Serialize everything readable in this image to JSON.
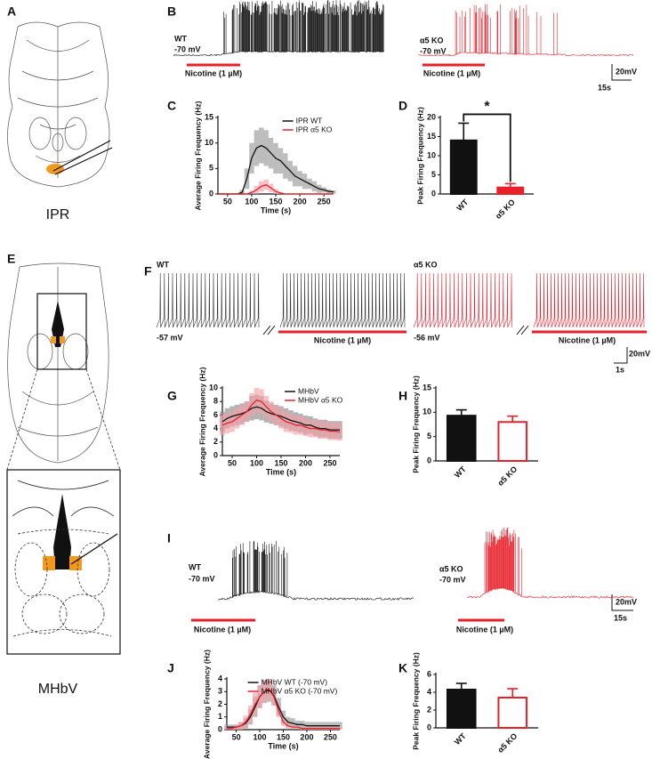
{
  "panel_labels": [
    "A",
    "B",
    "C",
    "D",
    "E",
    "F",
    "G",
    "H",
    "I",
    "J",
    "K"
  ],
  "region_labels": [
    "IPR",
    "MHbV"
  ],
  "traces": [
    {
      "genotype": "WT",
      "potential": "-70 mV",
      "drug": "Nicotine (1 µM)"
    },
    {
      "genotype": "α5 KO",
      "potential": "-70 mV",
      "drug": "Nicotine (1 µM)"
    },
    {
      "genotype": "WT",
      "potential": "-57 mV",
      "drug": "Nicotine (1 µM)"
    },
    {
      "genotype": "α5 KO",
      "potential": "-56 mV",
      "drug": "Nicotine (1 µM)"
    },
    {
      "genotype": "WT",
      "potential": "-70 mV",
      "drug": "Nicotine (1 µM)"
    },
    {
      "genotype": "α5 KO",
      "potential": "-70 mV",
      "drug": "Nicotine (1 µM)"
    }
  ],
  "scale_bars": [
    {
      "voltage": "20mV",
      "time": "15s"
    },
    {
      "voltage": "20mV",
      "time": "1s"
    },
    {
      "voltage": "20mV",
      "time": "15s"
    }
  ],
  "chart_data": [
    {
      "type": "line",
      "xlabel": "Time (s)",
      "ylabel": "Average Firing Frequency (Hz)",
      "legend": "upper right",
      "x": [
        30,
        40,
        50,
        60,
        70,
        80,
        90,
        100,
        110,
        120,
        130,
        140,
        150,
        160,
        170,
        180,
        190,
        200,
        210,
        220,
        230,
        240,
        250,
        260,
        270
      ],
      "xlim": [
        30,
        270
      ],
      "xticks": [
        50,
        100,
        150,
        200,
        250
      ],
      "ylim": [
        0,
        15
      ],
      "yticks": [
        0,
        5,
        10,
        15
      ],
      "series": [
        {
          "name": "IPR WT",
          "color": "#111111",
          "band_color": "#9a9a9a",
          "values": [
            0,
            0,
            0,
            0,
            0,
            0.3,
            3,
            7,
            9,
            9.5,
            9,
            8,
            7,
            6.5,
            5.5,
            4.5,
            3.5,
            3,
            2.5,
            2,
            1.5,
            1,
            0.8,
            0.5,
            0.4
          ],
          "errors": [
            0,
            0,
            0,
            0,
            0,
            0.5,
            2,
            3,
            3.5,
            3.5,
            3.5,
            3,
            3,
            2.5,
            2.5,
            2,
            2,
            1.5,
            1.5,
            1,
            1,
            0.8,
            0.5,
            0.4,
            0.3
          ]
        },
        {
          "name": "IPR α5 KO",
          "color": "#e8202a",
          "band_color": "#f4a0a6",
          "values": [
            0,
            0,
            0,
            0,
            0,
            0,
            0,
            0.3,
            0.8,
            1.5,
            1.8,
            1.2,
            0.5,
            0.2,
            0,
            0,
            0,
            0,
            0,
            0,
            0,
            0,
            0,
            0,
            0
          ],
          "errors": [
            0,
            0,
            0,
            0,
            0,
            0,
            0,
            0.3,
            0.8,
            1,
            1,
            0.8,
            0.5,
            0.2,
            0,
            0,
            0,
            0,
            0,
            0,
            0,
            0,
            0,
            0,
            0
          ]
        }
      ]
    },
    {
      "type": "bar",
      "ylabel": "Peak Firing Frequency (Hz)",
      "annotation": "*",
      "categories": [
        "WT",
        "α5 KO"
      ],
      "values": [
        14,
        1.7
      ],
      "errors": [
        4.5,
        1
      ],
      "colors": [
        "#111111",
        "#e8202a"
      ],
      "filled": [
        true,
        true
      ],
      "ylim": [
        0,
        20
      ],
      "yticks": [
        0,
        5,
        10,
        15,
        20
      ]
    },
    {
      "type": "line",
      "xlabel": "Time (s)",
      "ylabel": "Average Firing Frequency (Hz)",
      "legend": "upper right",
      "x": [
        30,
        40,
        50,
        60,
        70,
        80,
        90,
        100,
        110,
        120,
        130,
        140,
        150,
        160,
        170,
        180,
        190,
        200,
        210,
        220,
        230,
        240,
        250,
        260,
        270
      ],
      "xlim": [
        30,
        270
      ],
      "xticks": [
        50,
        100,
        150,
        200,
        250
      ],
      "ylim": [
        0,
        10
      ],
      "yticks": [
        0,
        2,
        4,
        6,
        8,
        10
      ],
      "series": [
        {
          "name": "MHbV",
          "color": "#111111",
          "band_color": "#8a8a8a",
          "values": [
            5,
            5.5,
            5.8,
            6,
            6.2,
            6.5,
            7,
            7.2,
            7,
            6.5,
            6.2,
            6,
            5.8,
            5.5,
            5.2,
            5,
            4.8,
            4.5,
            4.5,
            4.2,
            4,
            4,
            3.8,
            3.8,
            3.8
          ],
          "errors": [
            1.5,
            1.5,
            1.5,
            1.5,
            1.5,
            1.5,
            1.8,
            1.8,
            1.8,
            1.6,
            1.5,
            1.5,
            1.5,
            1.5,
            1.5,
            1.4,
            1.4,
            1.4,
            1.3,
            1.3,
            1.3,
            1.3,
            1.3,
            1.3,
            1.3
          ]
        },
        {
          "name": "MHbV α5 KO",
          "color": "#e8202a",
          "band_color": "#f4a0a6",
          "values": [
            4.5,
            4.8,
            5,
            5.5,
            6,
            6.5,
            7.5,
            8.2,
            8,
            7.2,
            6.5,
            6,
            5.5,
            5,
            4.8,
            4.5,
            4.5,
            4.2,
            4,
            4,
            3.8,
            3.8,
            3.6,
            3.6,
            3.5
          ],
          "errors": [
            1.5,
            1.5,
            1.5,
            1.5,
            1.5,
            1.5,
            1.7,
            1.8,
            1.8,
            1.6,
            1.5,
            1.5,
            1.5,
            1.5,
            1.4,
            1.4,
            1.4,
            1.3,
            1.3,
            1.3,
            1.3,
            1.3,
            1.3,
            1.3,
            1.3
          ]
        }
      ]
    },
    {
      "type": "bar",
      "ylabel": "Peak Firing Frequency (Hz)",
      "categories": [
        "WT",
        "α5 KO"
      ],
      "values": [
        9.3,
        8
      ],
      "errors": [
        1.2,
        1.2
      ],
      "colors": [
        "#111111",
        "#e8202a"
      ],
      "filled": [
        true,
        false
      ],
      "ylim": [
        0,
        15
      ],
      "yticks": [
        0,
        5,
        10,
        15
      ]
    },
    {
      "type": "line",
      "xlabel": "Time (s)",
      "ylabel": "Average Firing Frequency (Hz)",
      "legend": "upper right",
      "x": [
        30,
        40,
        50,
        60,
        70,
        80,
        90,
        100,
        110,
        120,
        130,
        140,
        150,
        160,
        170,
        180,
        190,
        200,
        210,
        220,
        230,
        240,
        250,
        260,
        270
      ],
      "xlim": [
        30,
        270
      ],
      "xticks": [
        50,
        100,
        150,
        200,
        250
      ],
      "ylim": [
        0,
        4
      ],
      "yticks": [
        0,
        1,
        2,
        3,
        4
      ],
      "series": [
        {
          "name": "MHbV WT (-70 mV)",
          "color": "#111111",
          "band_color": "#9a9a9a",
          "values": [
            0.2,
            0.2,
            0.2,
            0.3,
            0.5,
            1,
            1.8,
            2.6,
            3,
            3.1,
            2.7,
            1.8,
            1,
            0.6,
            0.5,
            0.4,
            0.4,
            0.3,
            0.3,
            0.3,
            0.3,
            0.3,
            0.3,
            0.3,
            0.3
          ],
          "errors": [
            0.2,
            0.2,
            0.2,
            0.3,
            0.4,
            0.6,
            0.8,
            0.9,
            0.9,
            0.9,
            0.8,
            0.7,
            0.5,
            0.4,
            0.4,
            0.3,
            0.3,
            0.3,
            0.3,
            0.3,
            0.3,
            0.3,
            0.3,
            0.3,
            0.3
          ]
        },
        {
          "name": "MHbV α5 KO (-70 mV)",
          "color": "#e8202a",
          "band_color": "#f4a0a6",
          "values": [
            0.1,
            0.1,
            0.2,
            0.3,
            0.6,
            1.2,
            2,
            2.6,
            3,
            3.2,
            2.6,
            1.5,
            0.6,
            0.3,
            0.2,
            0.2,
            0.1,
            0.1,
            0.1,
            0.1,
            0.1,
            0.1,
            0.1,
            0.1,
            0.1
          ],
          "errors": [
            0.1,
            0.1,
            0.2,
            0.3,
            0.5,
            0.7,
            0.9,
            0.9,
            0.9,
            0.8,
            0.7,
            0.5,
            0.3,
            0.2,
            0.1,
            0.1,
            0.1,
            0.1,
            0.1,
            0.1,
            0.1,
            0.1,
            0.1,
            0.1,
            0.1
          ]
        }
      ]
    },
    {
      "type": "bar",
      "ylabel": "Peak Firing Frequency (Hz)",
      "categories": [
        "WT",
        "α5 KO"
      ],
      "values": [
        4.3,
        3.4
      ],
      "errors": [
        0.7,
        1
      ],
      "colors": [
        "#111111",
        "#e8202a"
      ],
      "filled": [
        true,
        false
      ],
      "ylim": [
        0,
        6
      ],
      "yticks": [
        0,
        2,
        4,
        6
      ]
    }
  ]
}
